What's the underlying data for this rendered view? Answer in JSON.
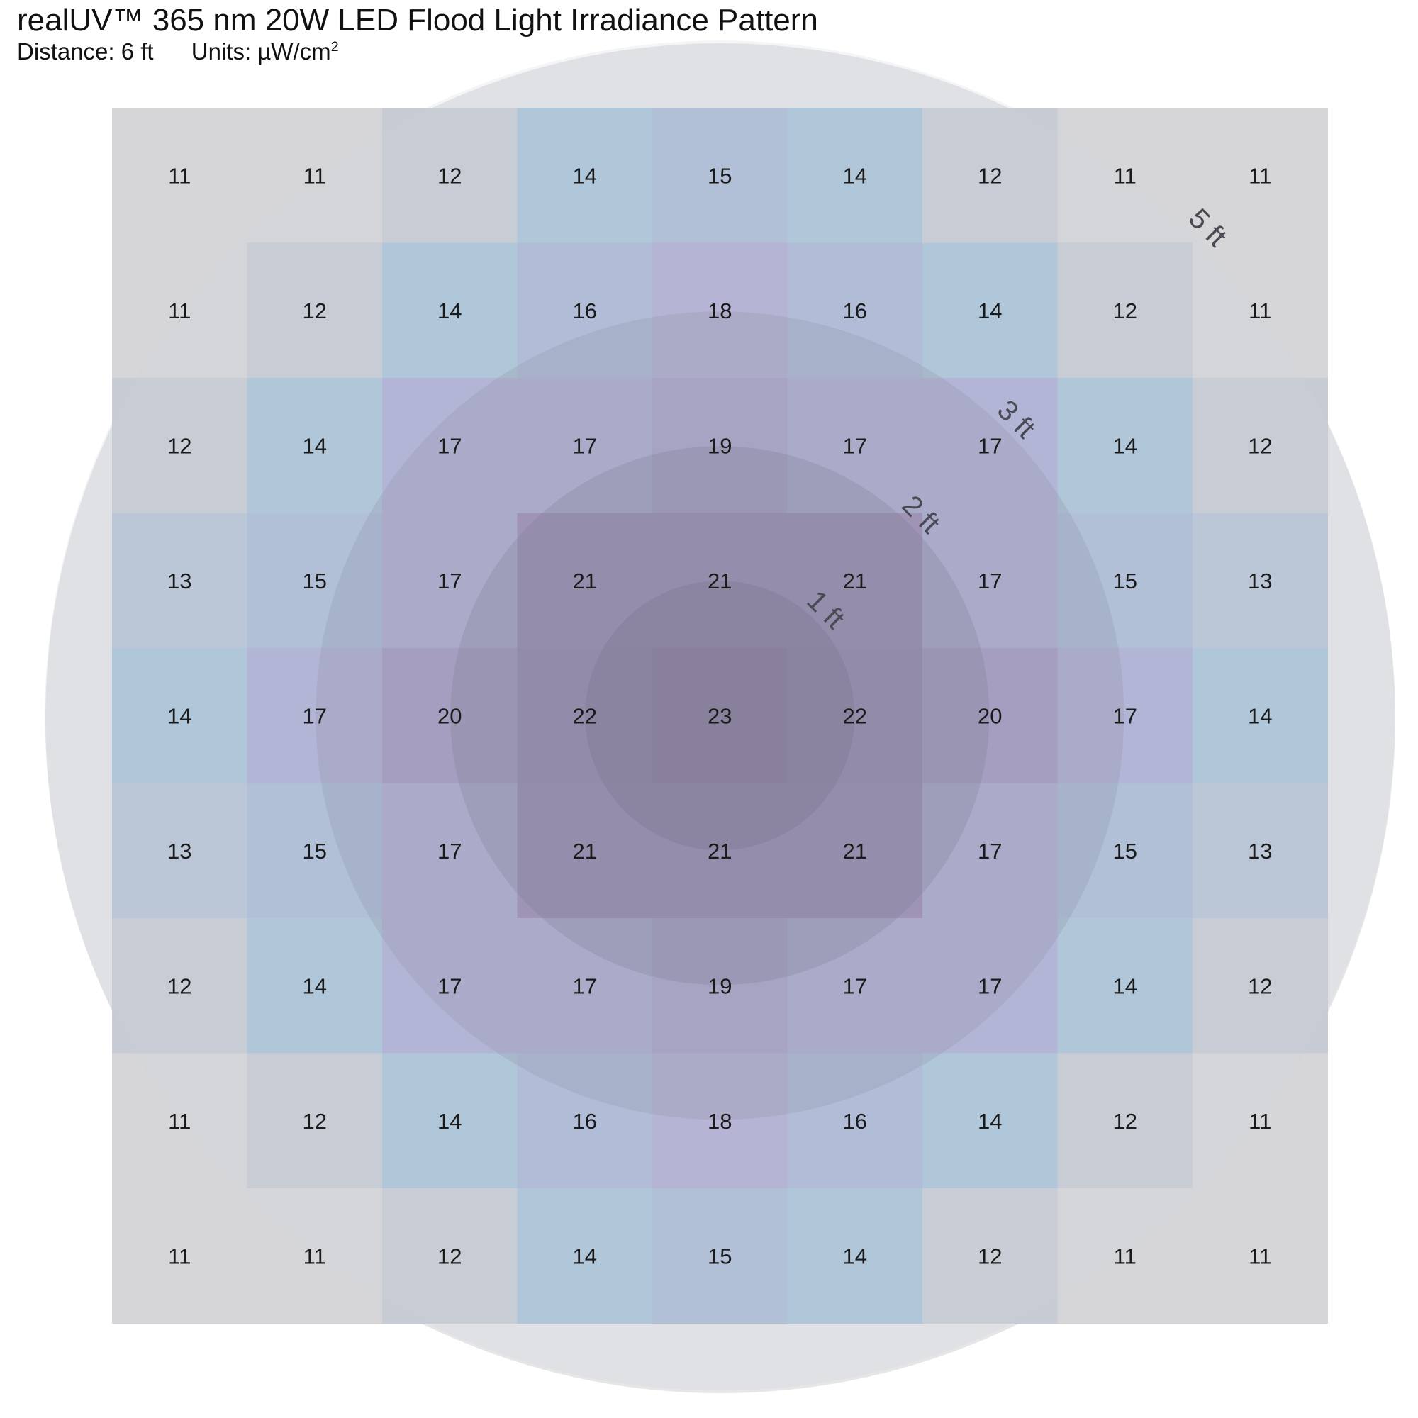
{
  "chart_data": {
    "type": "heatmap",
    "title": "realUV™ 365 nm 20W LED Flood Light Irradiance Pattern",
    "distance_label": "Distance: 6 ft",
    "units_label": "Units: µW/cm",
    "units_sup": "2",
    "rows": 9,
    "cols": 9,
    "values": [
      [
        11,
        11,
        12,
        14,
        15,
        14,
        12,
        11,
        11
      ],
      [
        11,
        12,
        14,
        16,
        18,
        16,
        14,
        12,
        11
      ],
      [
        12,
        14,
        17,
        17,
        19,
        17,
        17,
        14,
        12
      ],
      [
        13,
        15,
        17,
        21,
        21,
        21,
        17,
        15,
        13
      ],
      [
        14,
        17,
        20,
        22,
        23,
        22,
        20,
        17,
        14
      ],
      [
        13,
        15,
        17,
        21,
        21,
        21,
        17,
        15,
        13
      ],
      [
        12,
        14,
        17,
        17,
        19,
        17,
        17,
        14,
        12
      ],
      [
        11,
        12,
        14,
        16,
        18,
        16,
        14,
        12,
        11
      ],
      [
        11,
        11,
        12,
        14,
        15,
        14,
        12,
        11,
        11
      ]
    ],
    "color_scale": {
      "11": "#d6d6d8",
      "12": "#c6cbd4",
      "13": "#b6c5d7",
      "14": "#a8c3d9",
      "15": "#aabbd7",
      "16": "#aab8d6",
      "17": "#acaed5",
      "18": "#b0acd4",
      "19": "#a89fcb",
      "20": "#a495c4",
      "21": "#9a85b2",
      "22": "#957fae",
      "23": "#8c6f9e"
    },
    "rings": [
      {
        "label": "5 ft",
        "radius_ft": 5
      },
      {
        "label": "3 ft",
        "radius_ft": 3
      },
      {
        "label": "2 ft",
        "radius_ft": 2
      },
      {
        "label": "1 ft",
        "radius_ft": 1
      }
    ]
  }
}
